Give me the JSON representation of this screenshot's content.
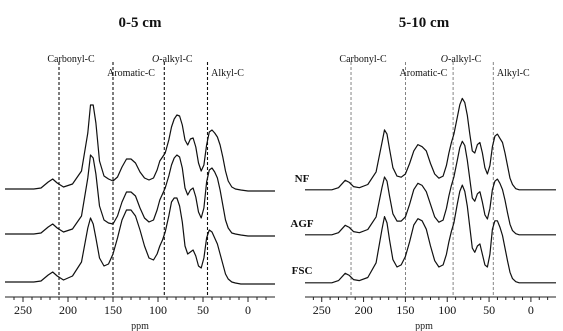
{
  "chart_data": [
    {
      "type": "line",
      "title": "0-5 cm",
      "xlabel": "ppm",
      "ylabel": "",
      "xlim": [
        270,
        -30
      ],
      "x_reversed": true,
      "x_ticks": [
        250,
        200,
        150,
        100,
        50,
        0
      ],
      "regions": [
        {
          "label": "Carbonyl-C",
          "boundary_ppm": 210
        },
        {
          "label": "Aromatic-C",
          "boundary_ppm": 150
        },
        {
          "label": "O-alkyl-C",
          "boundary_ppm": 93
        },
        {
          "label": "Alkyl-C",
          "boundary_ppm": 45
        }
      ],
      "series": [
        {
          "name": "NF",
          "x": [
            270,
            258,
            245,
            238,
            230,
            222,
            217,
            212,
            205,
            195,
            185,
            178,
            175,
            172,
            169,
            165,
            160,
            155,
            150,
            145,
            140,
            135,
            130,
            125,
            120,
            115,
            110,
            105,
            101,
            98,
            95,
            92,
            88,
            85,
            82,
            79,
            76,
            73,
            70,
            67,
            64,
            61,
            58,
            55,
            52,
            49,
            46,
            43,
            40,
            37,
            34,
            31,
            28,
            25,
            22,
            18,
            14,
            8,
            0,
            -10,
            -20,
            -30
          ],
          "y": [
            0.06,
            0.06,
            0.06,
            0.06,
            0.07,
            0.13,
            0.16,
            0.12,
            0.08,
            0.11,
            0.24,
            0.62,
            0.9,
            0.9,
            0.72,
            0.34,
            0.19,
            0.16,
            0.14,
            0.18,
            0.28,
            0.36,
            0.36,
            0.32,
            0.23,
            0.17,
            0.15,
            0.17,
            0.25,
            0.34,
            0.38,
            0.42,
            0.55,
            0.68,
            0.76,
            0.8,
            0.79,
            0.7,
            0.55,
            0.5,
            0.56,
            0.57,
            0.48,
            0.32,
            0.24,
            0.3,
            0.5,
            0.63,
            0.65,
            0.62,
            0.58,
            0.5,
            0.38,
            0.24,
            0.14,
            0.08,
            0.06,
            0.05,
            0.04,
            0.04,
            0.04,
            0.04
          ]
        },
        {
          "name": "AGF",
          "x": [
            270,
            258,
            245,
            238,
            230,
            222,
            217,
            212,
            205,
            195,
            185,
            178,
            175,
            172,
            169,
            165,
            160,
            155,
            150,
            145,
            140,
            135,
            130,
            125,
            120,
            115,
            110,
            105,
            101,
            98,
            95,
            92,
            88,
            85,
            82,
            79,
            76,
            73,
            70,
            67,
            64,
            61,
            58,
            55,
            52,
            49,
            46,
            43,
            40,
            37,
            34,
            31,
            28,
            25,
            22,
            18,
            14,
            8,
            0,
            -10,
            -20,
            -30
          ],
          "y": [
            0.06,
            0.06,
            0.06,
            0.06,
            0.07,
            0.13,
            0.16,
            0.12,
            0.08,
            0.11,
            0.24,
            0.62,
            0.85,
            0.82,
            0.66,
            0.34,
            0.2,
            0.17,
            0.16,
            0.24,
            0.38,
            0.48,
            0.48,
            0.44,
            0.32,
            0.22,
            0.18,
            0.2,
            0.3,
            0.4,
            0.46,
            0.52,
            0.64,
            0.75,
            0.82,
            0.85,
            0.83,
            0.72,
            0.52,
            0.45,
            0.5,
            0.52,
            0.43,
            0.28,
            0.22,
            0.32,
            0.58,
            0.7,
            0.72,
            0.68,
            0.62,
            0.5,
            0.35,
            0.2,
            0.12,
            0.07,
            0.06,
            0.05,
            0.04,
            0.04,
            0.04,
            0.04
          ]
        },
        {
          "name": "FSC",
          "x": [
            270,
            258,
            245,
            238,
            230,
            222,
            217,
            212,
            205,
            195,
            185,
            178,
            175,
            172,
            169,
            165,
            160,
            155,
            150,
            145,
            140,
            135,
            130,
            125,
            120,
            115,
            110,
            105,
            101,
            98,
            95,
            92,
            88,
            85,
            82,
            79,
            76,
            73,
            70,
            67,
            64,
            61,
            58,
            55,
            52,
            49,
            46,
            43,
            40,
            37,
            34,
            31,
            28,
            25,
            22,
            18,
            14,
            8,
            0,
            -10,
            -20,
            -30
          ],
          "y": [
            0.06,
            0.06,
            0.06,
            0.06,
            0.07,
            0.13,
            0.16,
            0.12,
            0.08,
            0.12,
            0.26,
            0.6,
            0.7,
            0.64,
            0.5,
            0.3,
            0.22,
            0.24,
            0.34,
            0.5,
            0.68,
            0.78,
            0.78,
            0.72,
            0.58,
            0.42,
            0.3,
            0.28,
            0.34,
            0.42,
            0.48,
            0.56,
            0.72,
            0.86,
            0.9,
            0.9,
            0.82,
            0.66,
            0.42,
            0.34,
            0.36,
            0.38,
            0.32,
            0.22,
            0.2,
            0.3,
            0.5,
            0.58,
            0.56,
            0.5,
            0.44,
            0.34,
            0.24,
            0.14,
            0.09,
            0.06,
            0.05,
            0.04,
            0.04,
            0.04,
            0.04,
            0.04
          ]
        }
      ]
    },
    {
      "type": "line",
      "title": "5-10 cm",
      "xlabel": "ppm",
      "ylabel": "",
      "xlim": [
        270,
        -30
      ],
      "x_reversed": true,
      "x_ticks": [
        250,
        200,
        150,
        100,
        50,
        0
      ],
      "regions": [
        {
          "label": "Carbonyl-C",
          "boundary_ppm": 215
        },
        {
          "label": "Aromatic-C",
          "boundary_ppm": 150
        },
        {
          "label": "O-alkyl-C",
          "boundary_ppm": 93
        },
        {
          "label": "Alkyl-C",
          "boundary_ppm": 45
        }
      ],
      "series": [
        {
          "name": "NF",
          "x": [
            270,
            258,
            245,
            238,
            230,
            222,
            217,
            212,
            205,
            195,
            185,
            178,
            175,
            172,
            169,
            165,
            160,
            155,
            150,
            145,
            140,
            135,
            130,
            125,
            120,
            115,
            110,
            105,
            101,
            98,
            95,
            92,
            88,
            85,
            82,
            79,
            76,
            73,
            70,
            67,
            64,
            61,
            58,
            55,
            52,
            49,
            46,
            43,
            40,
            37,
            34,
            31,
            28,
            25,
            22,
            18,
            14,
            8,
            0,
            -10,
            -20,
            -30
          ],
          "y": [
            0.05,
            0.05,
            0.05,
            0.05,
            0.07,
            0.14,
            0.12,
            0.08,
            0.07,
            0.1,
            0.22,
            0.5,
            0.62,
            0.58,
            0.44,
            0.26,
            0.18,
            0.17,
            0.2,
            0.3,
            0.42,
            0.48,
            0.46,
            0.42,
            0.3,
            0.2,
            0.16,
            0.18,
            0.28,
            0.4,
            0.5,
            0.58,
            0.74,
            0.86,
            0.92,
            0.88,
            0.76,
            0.58,
            0.42,
            0.4,
            0.48,
            0.5,
            0.4,
            0.26,
            0.2,
            0.28,
            0.46,
            0.56,
            0.58,
            0.54,
            0.5,
            0.4,
            0.28,
            0.16,
            0.1,
            0.06,
            0.05,
            0.05,
            0.05,
            0.05,
            0.05,
            0.05
          ]
        },
        {
          "name": "AGF",
          "x": [
            270,
            258,
            245,
            238,
            230,
            222,
            217,
            212,
            205,
            195,
            185,
            178,
            175,
            172,
            169,
            165,
            160,
            155,
            150,
            145,
            140,
            135,
            130,
            125,
            120,
            115,
            110,
            105,
            101,
            98,
            95,
            92,
            88,
            85,
            82,
            79,
            76,
            73,
            70,
            67,
            64,
            61,
            58,
            55,
            52,
            49,
            46,
            43,
            40,
            37,
            34,
            31,
            28,
            25,
            22,
            18,
            14,
            8,
            0,
            -10,
            -20,
            -30
          ],
          "y": [
            0.05,
            0.05,
            0.05,
            0.05,
            0.07,
            0.14,
            0.12,
            0.08,
            0.07,
            0.1,
            0.22,
            0.5,
            0.6,
            0.56,
            0.42,
            0.25,
            0.18,
            0.18,
            0.22,
            0.34,
            0.48,
            0.54,
            0.52,
            0.46,
            0.34,
            0.22,
            0.17,
            0.19,
            0.3,
            0.42,
            0.52,
            0.6,
            0.76,
            0.88,
            0.94,
            0.9,
            0.76,
            0.58,
            0.4,
            0.37,
            0.44,
            0.46,
            0.36,
            0.24,
            0.2,
            0.3,
            0.48,
            0.56,
            0.58,
            0.54,
            0.48,
            0.38,
            0.26,
            0.15,
            0.09,
            0.06,
            0.05,
            0.05,
            0.05,
            0.05,
            0.05,
            0.05
          ]
        },
        {
          "name": "FSC",
          "x": [
            270,
            258,
            245,
            238,
            230,
            222,
            217,
            212,
            205,
            195,
            185,
            178,
            175,
            172,
            169,
            165,
            160,
            155,
            150,
            145,
            140,
            135,
            130,
            125,
            120,
            115,
            110,
            105,
            101,
            98,
            95,
            92,
            88,
            85,
            82,
            79,
            76,
            73,
            70,
            67,
            64,
            61,
            58,
            55,
            52,
            49,
            46,
            43,
            40,
            37,
            34,
            31,
            28,
            25,
            22,
            18,
            14,
            8,
            0,
            -10,
            -20,
            -30
          ],
          "y": [
            0.05,
            0.05,
            0.05,
            0.05,
            0.07,
            0.14,
            0.12,
            0.08,
            0.07,
            0.1,
            0.24,
            0.56,
            0.68,
            0.62,
            0.46,
            0.27,
            0.2,
            0.22,
            0.3,
            0.44,
            0.6,
            0.66,
            0.64,
            0.56,
            0.4,
            0.26,
            0.2,
            0.22,
            0.32,
            0.44,
            0.54,
            0.62,
            0.8,
            0.92,
            0.98,
            0.92,
            0.78,
            0.58,
            0.38,
            0.34,
            0.4,
            0.42,
            0.32,
            0.22,
            0.2,
            0.32,
            0.56,
            0.64,
            0.64,
            0.58,
            0.5,
            0.38,
            0.26,
            0.15,
            0.09,
            0.06,
            0.05,
            0.05,
            0.05,
            0.05,
            0.05,
            0.05
          ]
        }
      ]
    }
  ]
}
